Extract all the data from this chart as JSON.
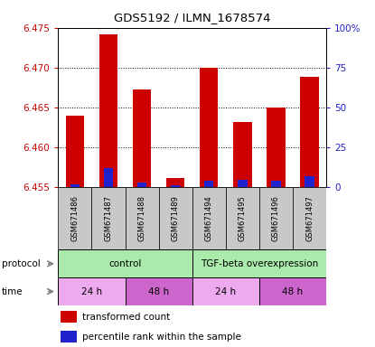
{
  "title": "GDS5192 / ILMN_1678574",
  "samples": [
    "GSM671486",
    "GSM671487",
    "GSM671488",
    "GSM671489",
    "GSM671494",
    "GSM671495",
    "GSM671496",
    "GSM671497"
  ],
  "red_values": [
    6.464,
    6.4742,
    6.4673,
    6.4562,
    6.47,
    6.4632,
    6.465,
    6.4688
  ],
  "blue_pct": [
    2.0,
    12.0,
    3.0,
    1.5,
    4.0,
    5.0,
    4.0,
    7.0
  ],
  "y_min": 6.455,
  "y_max": 6.475,
  "y_ticks_left": [
    6.455,
    6.46,
    6.465,
    6.47,
    6.475
  ],
  "y_ticks_right": [
    0,
    25,
    50,
    75,
    100
  ],
  "bar_width": 0.55,
  "blue_bar_width": 0.28,
  "bar_color_red": "#cc0000",
  "bar_color_blue": "#2222cc",
  "bg_color": "#ffffff",
  "left_tick_color": "#cc0000",
  "right_tick_color": "#2222cc",
  "sample_bg": "#c8c8c8",
  "control_color": "#aaeaaa",
  "tgf_color": "#aaeaaa",
  "time24_color": "#eeaaee",
  "time48_color": "#cc66cc",
  "legend_red": "transformed count",
  "legend_blue": "percentile rank within the sample"
}
